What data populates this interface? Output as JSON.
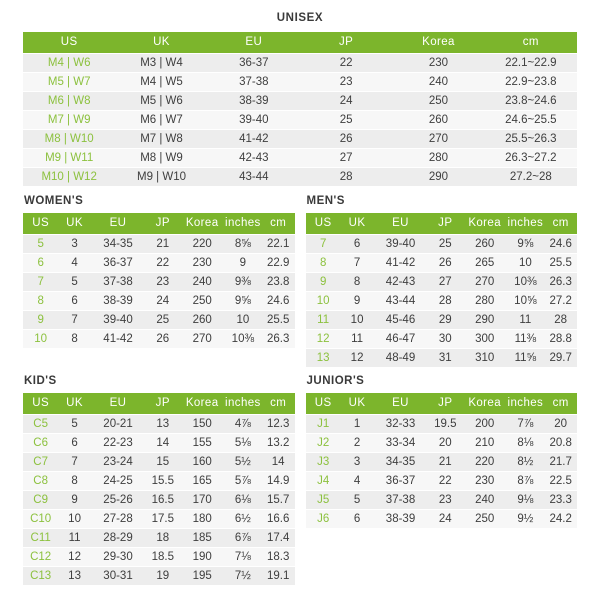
{
  "colors": {
    "header_bg": "#7cb52c",
    "accent_text": "#8cc13e",
    "row_alt_dark": "#ededed",
    "row_alt_light": "#f7f7f7",
    "header_text": "#ffffff",
    "body_text": "#3e3e3e",
    "title_text": "#3a3a3a"
  },
  "sections": {
    "unisex": {
      "title": "UNISEX",
      "table": {
        "columns": [
          "US",
          "UK",
          "EU",
          "JP",
          "Korea",
          "cm"
        ],
        "rows": [
          [
            "M4 | W6",
            "M3 | W4",
            "36-37",
            "22",
            "230",
            "22.1~22.9"
          ],
          [
            "M5 | W7",
            "M4 | W5",
            "37-38",
            "23",
            "240",
            "22.9~23.8"
          ],
          [
            "M6 | W8",
            "M5 | W6",
            "38-39",
            "24",
            "250",
            "23.8~24.6"
          ],
          [
            "M7 | W9",
            "M6 | W7",
            "39-40",
            "25",
            "260",
            "24.6~25.5"
          ],
          [
            "M8 | W10",
            "M7 | W8",
            "41-42",
            "26",
            "270",
            "25.5~26.3"
          ],
          [
            "M9 | W11",
            "M8 | W9",
            "42-43",
            "27",
            "280",
            "26.3~27.2"
          ],
          [
            "M10 | W12",
            "M9 | W10",
            "43-44",
            "28",
            "290",
            "27.2~28"
          ]
        ]
      }
    },
    "womens": {
      "title": "WOMEN'S",
      "table": {
        "columns": [
          "US",
          "UK",
          "EU",
          "JP",
          "Korea",
          "inches",
          "cm"
        ],
        "rows": [
          [
            "5",
            "3",
            "34-35",
            "21",
            "220",
            "8⅝",
            "22.1"
          ],
          [
            "6",
            "4",
            "36-37",
            "22",
            "230",
            "9",
            "22.9"
          ],
          [
            "7",
            "5",
            "37-38",
            "23",
            "240",
            "9⅜",
            "23.8"
          ],
          [
            "8",
            "6",
            "38-39",
            "24",
            "250",
            "9⅝",
            "24.6"
          ],
          [
            "9",
            "7",
            "39-40",
            "25",
            "260",
            "10",
            "25.5"
          ],
          [
            "10",
            "8",
            "41-42",
            "26",
            "270",
            "10⅜",
            "26.3"
          ]
        ]
      }
    },
    "mens": {
      "title": "MEN'S",
      "table": {
        "columns": [
          "US",
          "UK",
          "EU",
          "JP",
          "Korea",
          "inches",
          "cm"
        ],
        "rows": [
          [
            "7",
            "6",
            "39-40",
            "25",
            "260",
            "9⅝",
            "24.6"
          ],
          [
            "8",
            "7",
            "41-42",
            "26",
            "265",
            "10",
            "25.5"
          ],
          [
            "9",
            "8",
            "42-43",
            "27",
            "270",
            "10⅜",
            "26.3"
          ],
          [
            "10",
            "9",
            "43-44",
            "28",
            "280",
            "10⅝",
            "27.2"
          ],
          [
            "11",
            "10",
            "45-46",
            "29",
            "290",
            "11",
            "28"
          ],
          [
            "12",
            "11",
            "46-47",
            "30",
            "300",
            "11⅜",
            "28.8"
          ],
          [
            "13",
            "12",
            "48-49",
            "31",
            "310",
            "11⅝",
            "29.7"
          ]
        ]
      }
    },
    "kids": {
      "title": "KID'S",
      "table": {
        "columns": [
          "US",
          "UK",
          "EU",
          "JP",
          "Korea",
          "inches",
          "cm"
        ],
        "rows": [
          [
            "C5",
            "5",
            "20-21",
            "13",
            "150",
            "4⅞",
            "12.3"
          ],
          [
            "C6",
            "6",
            "22-23",
            "14",
            "155",
            "5⅛",
            "13.2"
          ],
          [
            "C7",
            "7",
            "23-24",
            "15",
            "160",
            "5½",
            "14"
          ],
          [
            "C8",
            "8",
            "24-25",
            "15.5",
            "165",
            "5⅞",
            "14.9"
          ],
          [
            "C9",
            "9",
            "25-26",
            "16.5",
            "170",
            "6⅛",
            "15.7"
          ],
          [
            "C10",
            "10",
            "27-28",
            "17.5",
            "180",
            "6½",
            "16.6"
          ],
          [
            "C11",
            "11",
            "28-29",
            "18",
            "185",
            "6⅞",
            "17.4"
          ],
          [
            "C12",
            "12",
            "29-30",
            "18.5",
            "190",
            "7⅛",
            "18.3"
          ],
          [
            "C13",
            "13",
            "30-31",
            "19",
            "195",
            "7½",
            "19.1"
          ]
        ]
      }
    },
    "juniors": {
      "title": "JUNIOR'S",
      "table": {
        "columns": [
          "US",
          "UK",
          "EU",
          "JP",
          "Korea",
          "inches",
          "cm"
        ],
        "rows": [
          [
            "J1",
            "1",
            "32-33",
            "19.5",
            "200",
            "7⅞",
            "20"
          ],
          [
            "J2",
            "2",
            "33-34",
            "20",
            "210",
            "8⅛",
            "20.8"
          ],
          [
            "J3",
            "3",
            "34-35",
            "21",
            "220",
            "8½",
            "21.7"
          ],
          [
            "J4",
            "4",
            "36-37",
            "22",
            "230",
            "8⅞",
            "22.5"
          ],
          [
            "J5",
            "5",
            "37-38",
            "23",
            "240",
            "9⅛",
            "23.3"
          ],
          [
            "J6",
            "6",
            "38-39",
            "24",
            "250",
            "9½",
            "24.2"
          ]
        ]
      }
    }
  }
}
